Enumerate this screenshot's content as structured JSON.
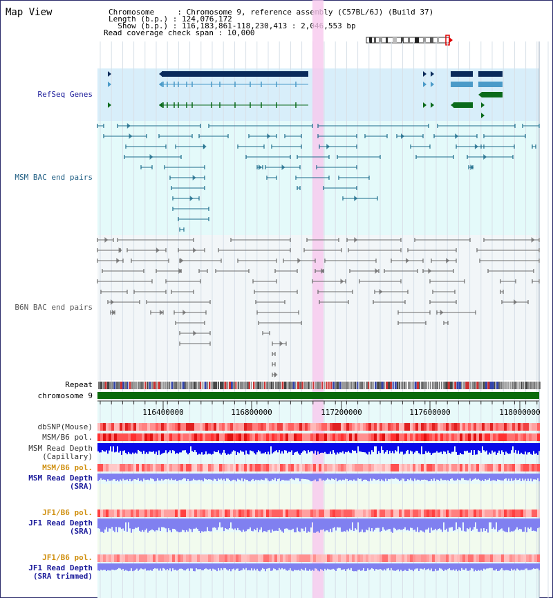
{
  "window": {
    "title": "Map View"
  },
  "info": {
    "chromosome": "Chromosome     : Chromosome 9, reference assembly (C57BL/6J) (Build 37)",
    "length": "Length (b.p.) : 124,076,172",
    "show": "  Show (b.p.) : 116,183,861-118,230,413 : 2,046,553 bp",
    "coverage": "Read coverage check span : 10,000"
  },
  "tracks": {
    "refseq": "RefSeq Genes",
    "msm_bac": "MSM BAC end pairs",
    "b6n_bac": "B6N BAC end pairs",
    "repeat": "Repeat",
    "chromosome": "chromosome 9",
    "dbsnp": "dbSNP(Mouse)",
    "msm_b6_pol_1": "MSM/B6 pol.",
    "msm_read_depth_cap": "MSM Read Depth\n(Capillary)",
    "msm_b6_pol_2": "MSM/B6 pol.",
    "msm_read_depth_sra": "MSM Read Depth\n(SRA)",
    "jf1_b6_pol_1": "JF1/B6 pol.",
    "jf1_read_depth_sra": "JF1 Read Depth\n(SRA)",
    "jf1_b6_pol_2": "JF1/B6 pol.",
    "jf1_read_depth_trim": "JF1 Read Depth\n(SRA trimmed)"
  },
  "ruler": {
    "ticks": [
      "116400000",
      "116800000",
      "117200000",
      "117600000",
      "118000000"
    ]
  },
  "colors": {
    "refseq_bg": "#d8eefa",
    "msm_bg": "#e4fafa",
    "b6n_bg": "#f2f6f8",
    "highlight": "#f7c8ee",
    "gene_dark": "#0a2a5a",
    "gene_mid": "#4a9ac8",
    "gene_green": "#0a6a1a",
    "msm_pair": "#1a6a8a",
    "b6n_pair": "#6a6a6a",
    "chromosome_bar": "#0a6a0a",
    "label_blue": "#1a1a9a",
    "label_orange": "#d09010",
    "depth_dark": "#0a0ae8",
    "depth_light": "#8080f0"
  }
}
